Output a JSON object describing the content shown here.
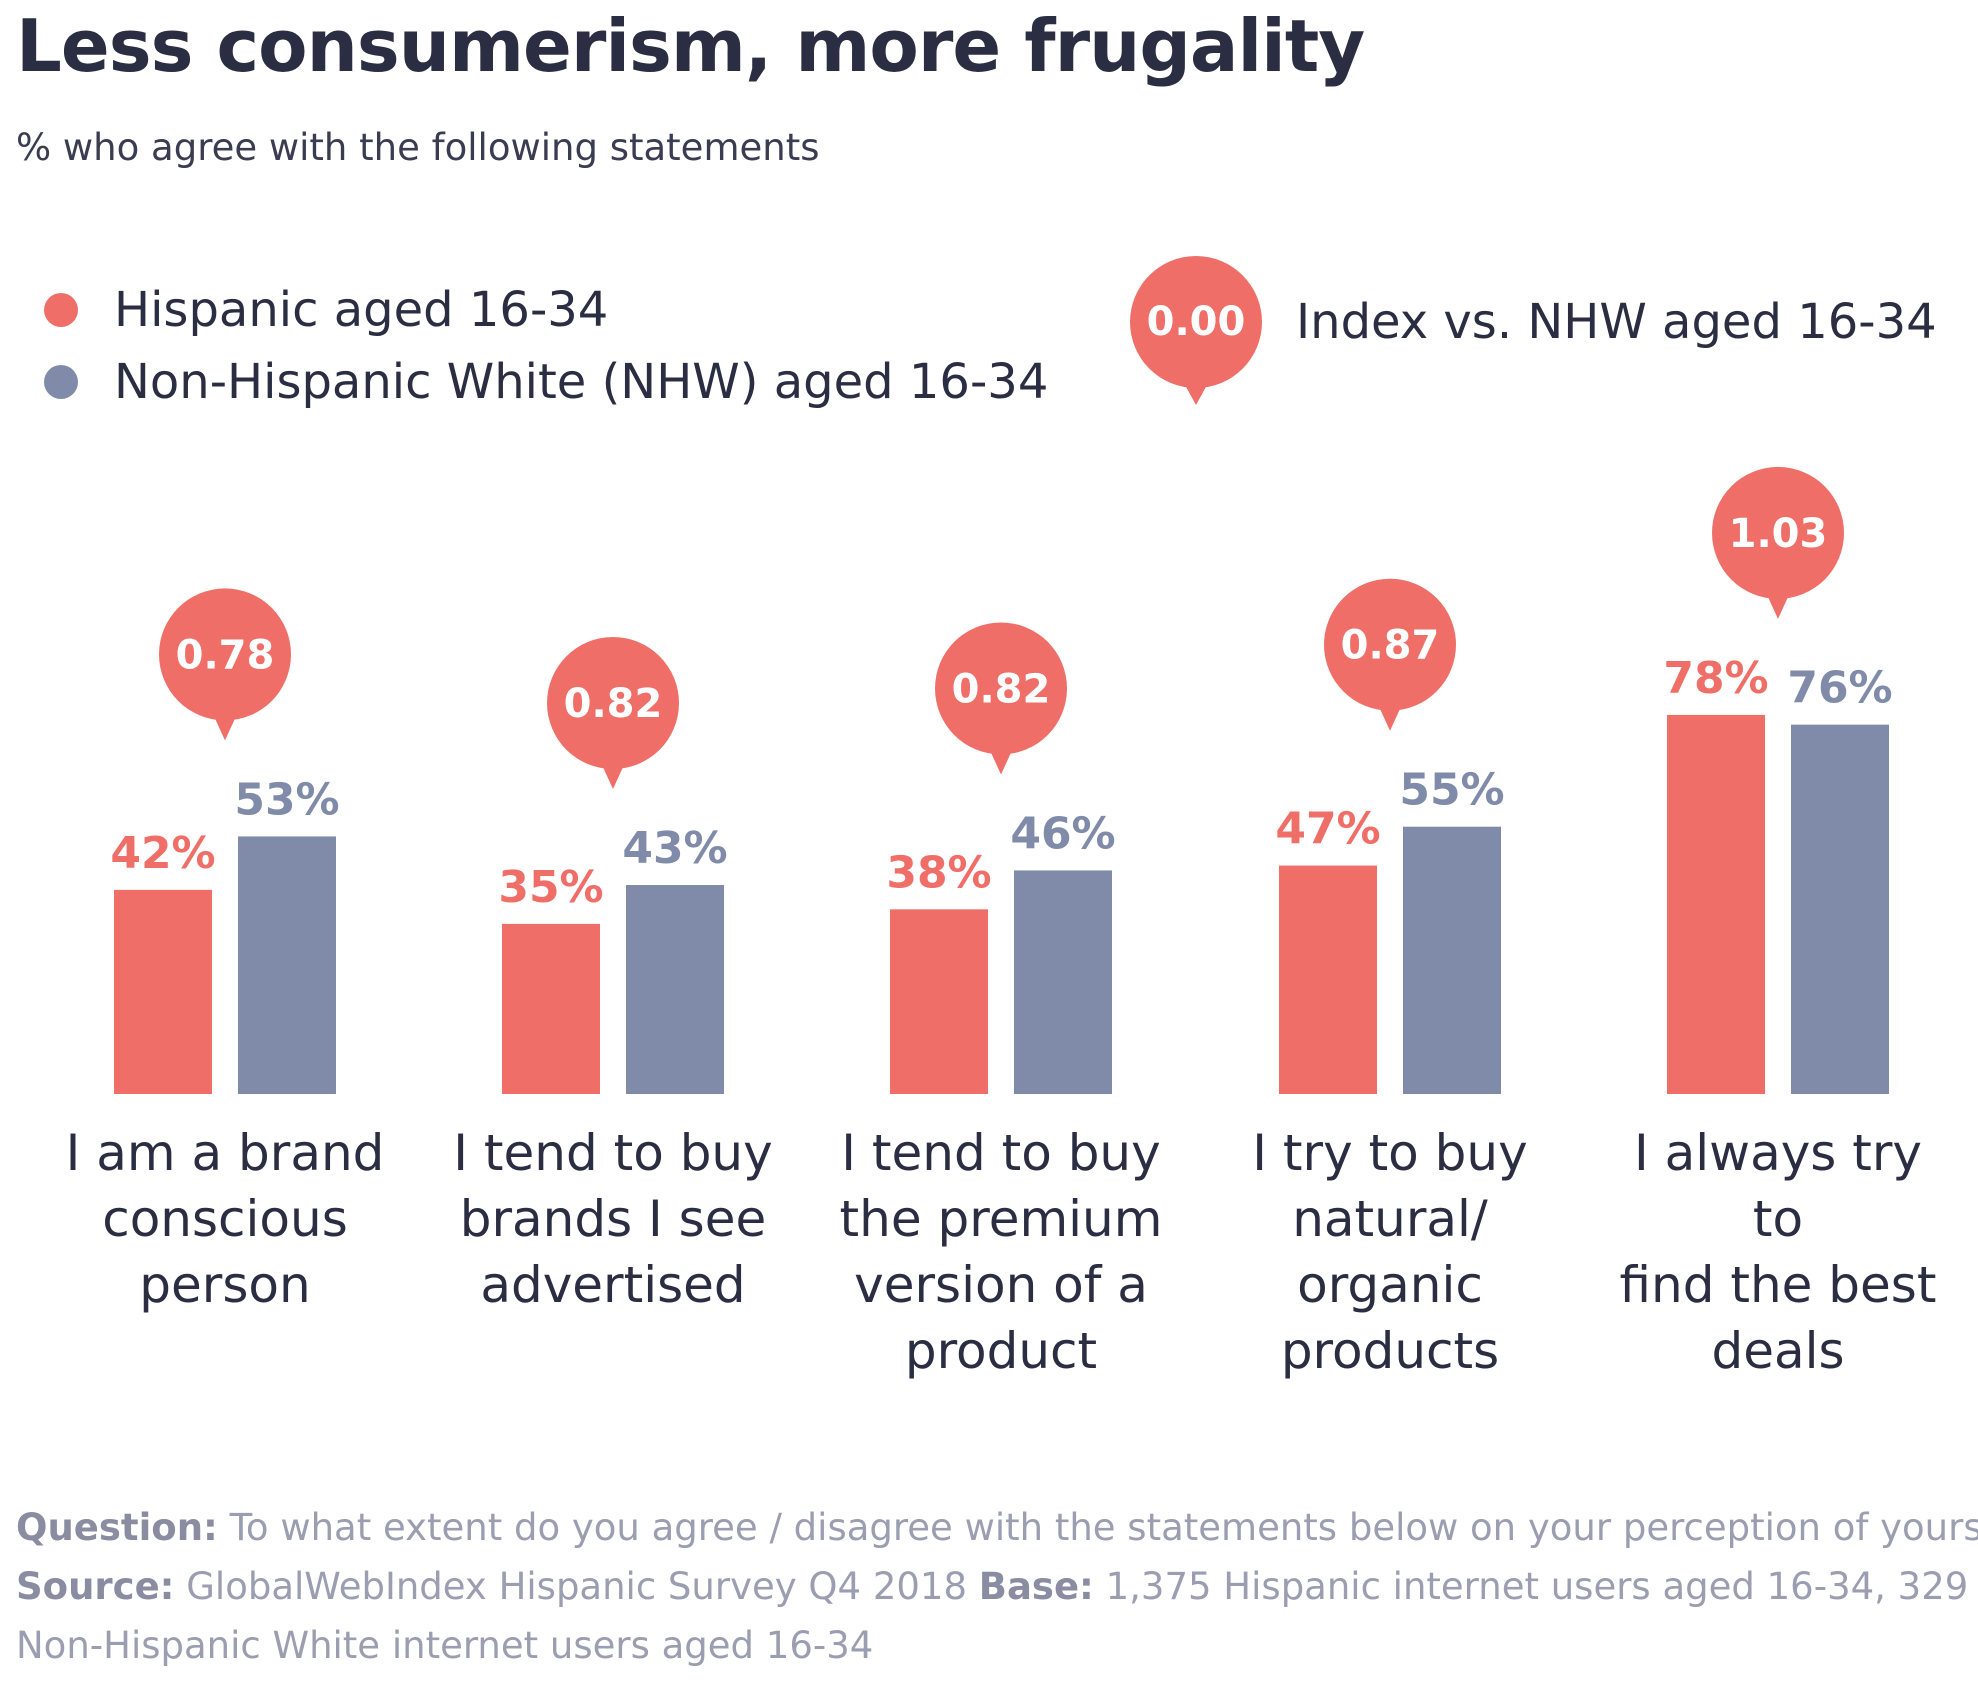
{
  "title": "Less consumerism, more frugality",
  "subtitle": "% who agree with the following statements",
  "legend": {
    "series": [
      {
        "label": "Hispanic aged 16-34",
        "color": "#ef6f68"
      },
      {
        "label": "Non-Hispanic White (NHW) aged 16-34",
        "color": "#7f8ba8"
      }
    ],
    "index_key": {
      "value": "0.00",
      "label": "Index vs. NHW aged 16-34",
      "color": "#ef6f68"
    }
  },
  "chart_data": {
    "type": "bar",
    "categories": [
      "I am a brand conscious person",
      "I tend to buy brands I see advertised",
      "I tend to buy the premium version of a product",
      "I try to buy natural/ organic products",
      "I always try to find the best deals"
    ],
    "category_lines": [
      [
        "I am a brand",
        "conscious",
        "person"
      ],
      [
        "I tend to buy",
        "brands I see",
        "advertised"
      ],
      [
        "I tend to buy",
        "the premium",
        "version of a",
        "product"
      ],
      [
        "I try to buy",
        "natural/",
        "organic",
        "products"
      ],
      [
        "I always try to",
        "find the best",
        "deals"
      ]
    ],
    "series": [
      {
        "name": "Hispanic aged 16-34",
        "values": [
          42,
          35,
          38,
          47,
          78
        ],
        "labels": [
          "42%",
          "35%",
          "38%",
          "47%",
          "78%"
        ],
        "color": "#ef6f68"
      },
      {
        "name": "Non-Hispanic White (NHW) aged 16-34",
        "values": [
          53,
          43,
          46,
          55,
          76
        ],
        "labels": [
          "53%",
          "43%",
          "46%",
          "55%",
          "76%"
        ],
        "color": "#7f8ba8"
      }
    ],
    "index": [
      "0.78",
      "0.82",
      "0.82",
      "0.87",
      "1.03"
    ],
    "ylim": [
      0,
      100
    ],
    "grid": false,
    "legend_position": "top-left"
  },
  "footer": {
    "question_key": "Question:",
    "question_text": "To what extent do you agree / disagree with the statements below on your perception of yourself?",
    "source_key": "Source:",
    "source_text": "GlobalWebIndex Hispanic Survey Q4 2018",
    "base_key": "Base:",
    "base_text": "1,375 Hispanic internet users aged 16-34, 329",
    "base_text_2": "Non-Hispanic White internet users aged 16-34"
  }
}
